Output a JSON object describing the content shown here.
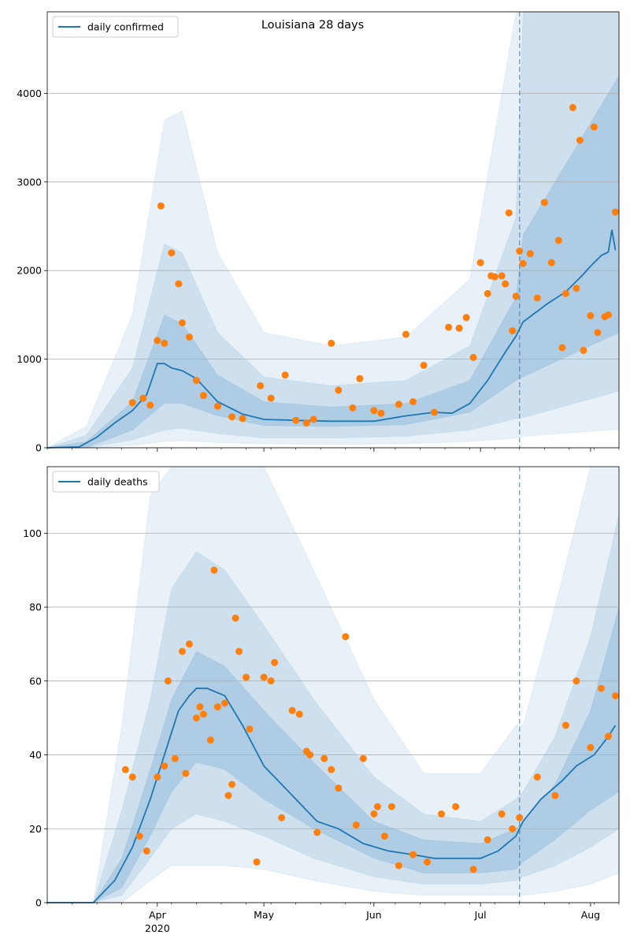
{
  "chart_data": [
    {
      "type": "line",
      "title": "Louisiana 28 days",
      "xlabel": "",
      "ylabel": "",
      "ylim": [
        0,
        4920
      ],
      "yticks": [
        0,
        1000,
        2000,
        3000,
        4000
      ],
      "grid": "horizontal",
      "legend_position": "top-left",
      "x_range": [
        "2020-03-01",
        "2020-08-09"
      ],
      "xticks": [
        {
          "date": "2020-04-01",
          "label": "Apr",
          "sublabel": "2020"
        },
        {
          "date": "2020-05-01",
          "label": "May",
          "sublabel": ""
        },
        {
          "date": "2020-06-01",
          "label": "Jun",
          "sublabel": ""
        },
        {
          "date": "2020-07-01",
          "label": "Jul",
          "sublabel": ""
        },
        {
          "date": "2020-08-01",
          "label": "Aug",
          "sublabel": ""
        }
      ],
      "forecast_start": "2020-07-12",
      "series": [
        {
          "name": "daily confirmed",
          "kind": "line",
          "color": "#1f77b4",
          "x": [
            "2020-03-01",
            "2020-03-10",
            "2020-03-15",
            "2020-03-20",
            "2020-03-25",
            "2020-03-29",
            "2020-04-01",
            "2020-04-03",
            "2020-04-05",
            "2020-04-08",
            "2020-04-12",
            "2020-04-18",
            "2020-04-25",
            "2020-05-01",
            "2020-05-10",
            "2020-05-20",
            "2020-06-01",
            "2020-06-10",
            "2020-06-18",
            "2020-06-23",
            "2020-06-28",
            "2020-07-03",
            "2020-07-08",
            "2020-07-11",
            "2020-07-13",
            "2020-07-20",
            "2020-07-25",
            "2020-07-30",
            "2020-08-01",
            "2020-08-04",
            "2020-08-06",
            "2020-08-07",
            "2020-08-08"
          ],
          "y": [
            0,
            10,
            120,
            280,
            420,
            600,
            950,
            950,
            900,
            870,
            780,
            520,
            380,
            320,
            310,
            300,
            300,
            360,
            400,
            390,
            500,
            760,
            1080,
            1260,
            1420,
            1630,
            1760,
            1960,
            2050,
            2170,
            2210,
            2460,
            2230
          ]
        },
        {
          "name": "",
          "kind": "scatter",
          "color": "#ff7f0e",
          "x": [
            "2020-03-25",
            "2020-03-28",
            "2020-03-30",
            "2020-04-01",
            "2020-04-02",
            "2020-04-03",
            "2020-04-05",
            "2020-04-07",
            "2020-04-08",
            "2020-04-10",
            "2020-04-12",
            "2020-04-14",
            "2020-04-18",
            "2020-04-22",
            "2020-04-25",
            "2020-04-30",
            "2020-05-03",
            "2020-05-07",
            "2020-05-10",
            "2020-05-13",
            "2020-05-15",
            "2020-05-20",
            "2020-05-22",
            "2020-05-26",
            "2020-05-28",
            "2020-06-01",
            "2020-06-03",
            "2020-06-08",
            "2020-06-10",
            "2020-06-12",
            "2020-06-15",
            "2020-06-18",
            "2020-06-22",
            "2020-06-25",
            "2020-06-27",
            "2020-06-29",
            "2020-07-01",
            "2020-07-03",
            "2020-07-04",
            "2020-07-05",
            "2020-07-07",
            "2020-07-08",
            "2020-07-09",
            "2020-07-10",
            "2020-07-11",
            "2020-07-12",
            "2020-07-13",
            "2020-07-15",
            "2020-07-17",
            "2020-07-19",
            "2020-07-21",
            "2020-07-23",
            "2020-07-24",
            "2020-07-25",
            "2020-07-27",
            "2020-07-28",
            "2020-07-29",
            "2020-07-30",
            "2020-08-01",
            "2020-08-02",
            "2020-08-03",
            "2020-08-05",
            "2020-08-06",
            "2020-08-08"
          ],
          "y": [
            510,
            560,
            480,
            1210,
            2730,
            1180,
            2200,
            1850,
            1410,
            1250,
            760,
            590,
            470,
            350,
            330,
            700,
            560,
            820,
            310,
            280,
            320,
            1180,
            650,
            450,
            780,
            420,
            390,
            490,
            1280,
            520,
            930,
            400,
            1360,
            1350,
            1470,
            1020,
            2090,
            1740,
            1940,
            1930,
            1940,
            1850,
            2650,
            1320,
            1710,
            2220,
            2080,
            2190,
            1690,
            2770,
            2090,
            2340,
            1130,
            1740,
            3840,
            1800,
            3470,
            1100,
            1490,
            3620,
            1300,
            1480,
            1500,
            2660
          ]
        }
      ],
      "bands": [
        {
          "level": "outer",
          "x": [
            "2020-03-01",
            "2020-03-12",
            "2020-03-25",
            "2020-04-03",
            "2020-04-08",
            "2020-04-18",
            "2020-05-01",
            "2020-05-20",
            "2020-06-10",
            "2020-06-28",
            "2020-07-11",
            "2020-07-13",
            "2020-08-09"
          ],
          "upper": [
            0,
            240,
            1500,
            3700,
            3800,
            2200,
            1300,
            1150,
            1250,
            1900,
            4920,
            4920,
            4920
          ],
          "lower": [
            0,
            0,
            30,
            70,
            80,
            60,
            45,
            40,
            45,
            70,
            110,
            130,
            210
          ]
        },
        {
          "level": "middle",
          "x": [
            "2020-03-01",
            "2020-03-12",
            "2020-03-25",
            "2020-04-03",
            "2020-04-08",
            "2020-04-18",
            "2020-05-01",
            "2020-05-20",
            "2020-06-10",
            "2020-06-28",
            "2020-07-11",
            "2020-07-13",
            "2020-08-09"
          ],
          "upper": [
            0,
            140,
            900,
            2300,
            2200,
            1300,
            800,
            700,
            760,
            1150,
            2600,
            4920,
            4920
          ],
          "lower": [
            0,
            0,
            90,
            200,
            220,
            160,
            110,
            110,
            130,
            200,
            330,
            340,
            640
          ]
        },
        {
          "level": "inner",
          "x": [
            "2020-03-01",
            "2020-03-12",
            "2020-03-25",
            "2020-04-03",
            "2020-04-08",
            "2020-04-18",
            "2020-05-01",
            "2020-05-20",
            "2020-06-10",
            "2020-06-28",
            "2020-07-11",
            "2020-07-13",
            "2020-08-09"
          ],
          "upper": [
            0,
            70,
            520,
            1500,
            1400,
            820,
            520,
            460,
            500,
            760,
            1700,
            2400,
            4200
          ],
          "lower": [
            0,
            0,
            200,
            500,
            500,
            360,
            250,
            240,
            260,
            400,
            760,
            800,
            1300
          ]
        }
      ]
    },
    {
      "type": "line",
      "title": "",
      "xlabel": "",
      "ylabel": "",
      "ylim": [
        0,
        118
      ],
      "yticks": [
        0,
        20,
        40,
        60,
        80,
        100
      ],
      "grid": "horizontal",
      "legend_position": "top-left",
      "x_range": [
        "2020-03-01",
        "2020-08-09"
      ],
      "xticks": [
        {
          "date": "2020-04-01",
          "label": "Apr",
          "sublabel": "2020"
        },
        {
          "date": "2020-05-01",
          "label": "May",
          "sublabel": ""
        },
        {
          "date": "2020-06-01",
          "label": "Jun",
          "sublabel": ""
        },
        {
          "date": "2020-07-01",
          "label": "Jul",
          "sublabel": ""
        },
        {
          "date": "2020-08-01",
          "label": "Aug",
          "sublabel": ""
        }
      ],
      "forecast_start": "2020-07-12",
      "series": [
        {
          "name": "daily deaths",
          "kind": "line",
          "color": "#1f77b4",
          "x": [
            "2020-03-01",
            "2020-03-14",
            "2020-03-20",
            "2020-03-25",
            "2020-03-30",
            "2020-04-03",
            "2020-04-07",
            "2020-04-10",
            "2020-04-12",
            "2020-04-15",
            "2020-04-20",
            "2020-04-25",
            "2020-05-01",
            "2020-05-05",
            "2020-05-10",
            "2020-05-16",
            "2020-05-22",
            "2020-05-29",
            "2020-06-05",
            "2020-06-12",
            "2020-06-18",
            "2020-06-24",
            "2020-07-01",
            "2020-07-06",
            "2020-07-11",
            "2020-07-13",
            "2020-07-18",
            "2020-07-24",
            "2020-07-28",
            "2020-08-02",
            "2020-08-06",
            "2020-08-08"
          ],
          "y": [
            0,
            0,
            6,
            15,
            28,
            40,
            52,
            56,
            58,
            58,
            56,
            48,
            37,
            33,
            28,
            22,
            20,
            16,
            14,
            13,
            12,
            12,
            12,
            14,
            18,
            22,
            28,
            33,
            37,
            40,
            45,
            48
          ]
        },
        {
          "name": "",
          "kind": "scatter",
          "color": "#ff7f0e",
          "x": [
            "2020-03-23",
            "2020-03-25",
            "2020-03-27",
            "2020-03-29",
            "2020-04-01",
            "2020-04-03",
            "2020-04-04",
            "2020-04-06",
            "2020-04-08",
            "2020-04-09",
            "2020-04-10",
            "2020-04-12",
            "2020-04-13",
            "2020-04-14",
            "2020-04-16",
            "2020-04-17",
            "2020-04-18",
            "2020-04-20",
            "2020-04-21",
            "2020-04-22",
            "2020-04-23",
            "2020-04-24",
            "2020-04-26",
            "2020-04-27",
            "2020-04-29",
            "2020-05-01",
            "2020-05-03",
            "2020-05-04",
            "2020-05-06",
            "2020-05-09",
            "2020-05-11",
            "2020-05-13",
            "2020-05-14",
            "2020-05-16",
            "2020-05-18",
            "2020-05-20",
            "2020-05-22",
            "2020-05-24",
            "2020-05-27",
            "2020-05-29",
            "2020-06-01",
            "2020-06-02",
            "2020-06-04",
            "2020-06-06",
            "2020-06-08",
            "2020-06-12",
            "2020-06-16",
            "2020-06-20",
            "2020-06-24",
            "2020-06-29",
            "2020-07-03",
            "2020-07-07",
            "2020-07-10",
            "2020-07-12",
            "2020-07-17",
            "2020-07-22",
            "2020-07-25",
            "2020-07-28",
            "2020-08-01",
            "2020-08-04",
            "2020-08-06",
            "2020-08-08"
          ],
          "y": [
            36,
            34,
            18,
            14,
            34,
            37,
            60,
            39,
            68,
            35,
            70,
            50,
            53,
            51,
            44,
            90,
            53,
            54,
            29,
            32,
            77,
            68,
            61,
            47,
            11,
            61,
            60,
            65,
            23,
            52,
            51,
            41,
            40,
            19,
            39,
            36,
            31,
            72,
            21,
            39,
            24,
            26,
            18,
            26,
            10,
            13,
            11,
            24,
            26,
            9,
            17,
            24,
            20,
            23,
            34,
            29,
            48,
            60,
            42,
            58,
            45,
            56
          ]
        }
      ],
      "bands": [
        {
          "level": "outer",
          "x": [
            "2020-03-01",
            "2020-03-14",
            "2020-03-22",
            "2020-03-30",
            "2020-04-05",
            "2020-04-12",
            "2020-04-20",
            "2020-05-01",
            "2020-05-15",
            "2020-06-01",
            "2020-06-15",
            "2020-07-01",
            "2020-07-11",
            "2020-07-13",
            "2020-07-22",
            "2020-08-01",
            "2020-08-09"
          ],
          "upper": [
            0,
            0,
            48,
            110,
            118,
            118,
            118,
            118,
            90,
            55,
            35,
            35,
            48,
            48,
            80,
            118,
            118
          ],
          "lower": [
            0,
            0,
            0,
            6,
            10,
            10,
            10,
            9,
            6,
            3,
            2,
            2,
            2,
            2,
            3,
            5,
            8
          ]
        },
        {
          "level": "middle",
          "x": [
            "2020-03-01",
            "2020-03-14",
            "2020-03-22",
            "2020-03-30",
            "2020-04-05",
            "2020-04-12",
            "2020-04-20",
            "2020-05-01",
            "2020-05-15",
            "2020-06-01",
            "2020-06-15",
            "2020-07-01",
            "2020-07-11",
            "2020-07-13",
            "2020-07-22",
            "2020-08-01",
            "2020-08-09"
          ],
          "upper": [
            0,
            0,
            25,
            55,
            85,
            95,
            90,
            75,
            55,
            34,
            24,
            22,
            28,
            30,
            45,
            72,
            105
          ],
          "lower": [
            0,
            0,
            2,
            12,
            20,
            24,
            22,
            18,
            12,
            7,
            5,
            5,
            6,
            7,
            10,
            15,
            20
          ]
        },
        {
          "level": "inner",
          "x": [
            "2020-03-01",
            "2020-03-14",
            "2020-03-22",
            "2020-03-30",
            "2020-04-05",
            "2020-04-12",
            "2020-04-20",
            "2020-05-01",
            "2020-05-15",
            "2020-06-01",
            "2020-06-15",
            "2020-07-01",
            "2020-07-11",
            "2020-07-13",
            "2020-07-22",
            "2020-08-01",
            "2020-08-09"
          ],
          "upper": [
            0,
            0,
            12,
            36,
            55,
            68,
            64,
            52,
            38,
            22,
            17,
            16,
            20,
            22,
            32,
            52,
            80
          ],
          "lower": [
            0,
            0,
            4,
            18,
            30,
            38,
            36,
            28,
            20,
            12,
            8,
            8,
            9,
            11,
            17,
            25,
            30
          ]
        }
      ]
    }
  ]
}
